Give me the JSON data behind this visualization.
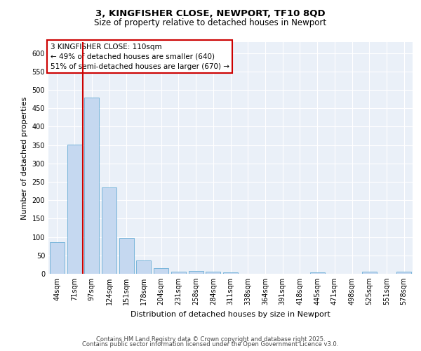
{
  "title1": "3, KINGFISHER CLOSE, NEWPORT, TF10 8QD",
  "title2": "Size of property relative to detached houses in Newport",
  "xlabel": "Distribution of detached houses by size in Newport",
  "ylabel": "Number of detached properties",
  "bar_values": [
    85,
    352,
    480,
    235,
    98,
    37,
    16,
    6,
    7,
    6,
    3,
    0,
    0,
    0,
    0,
    4,
    0,
    0,
    5,
    0,
    5
  ],
  "bar_labels": [
    "44sqm",
    "71sqm",
    "97sqm",
    "124sqm",
    "151sqm",
    "178sqm",
    "204sqm",
    "231sqm",
    "258sqm",
    "284sqm",
    "311sqm",
    "338sqm",
    "364sqm",
    "391sqm",
    "418sqm",
    "445sqm",
    "471sqm",
    "498sqm",
    "525sqm",
    "551sqm",
    "578sqm"
  ],
  "bar_color": "#c5d8f0",
  "bar_edge_color": "#6aaed6",
  "vline_color": "#cc0000",
  "vline_pos": 1.5,
  "ylim": [
    0,
    630
  ],
  "yticks": [
    0,
    50,
    100,
    150,
    200,
    250,
    300,
    350,
    400,
    450,
    500,
    550,
    600
  ],
  "annotation_title": "3 KINGFISHER CLOSE: 110sqm",
  "annotation_line1": "← 49% of detached houses are smaller (640)",
  "annotation_line2": "51% of semi-detached houses are larger (670) →",
  "annotation_box_color": "#ffffff",
  "annotation_box_edge": "#cc0000",
  "footer1": "Contains HM Land Registry data © Crown copyright and database right 2025.",
  "footer2": "Contains public sector information licensed under the Open Government Licence v3.0.",
  "background_color": "#eaf0f8",
  "grid_color": "#ffffff",
  "title1_fontsize": 9.5,
  "title2_fontsize": 8.5,
  "axis_label_fontsize": 8,
  "tick_fontsize": 7,
  "annotation_fontsize": 7.5,
  "footer_fontsize": 6
}
